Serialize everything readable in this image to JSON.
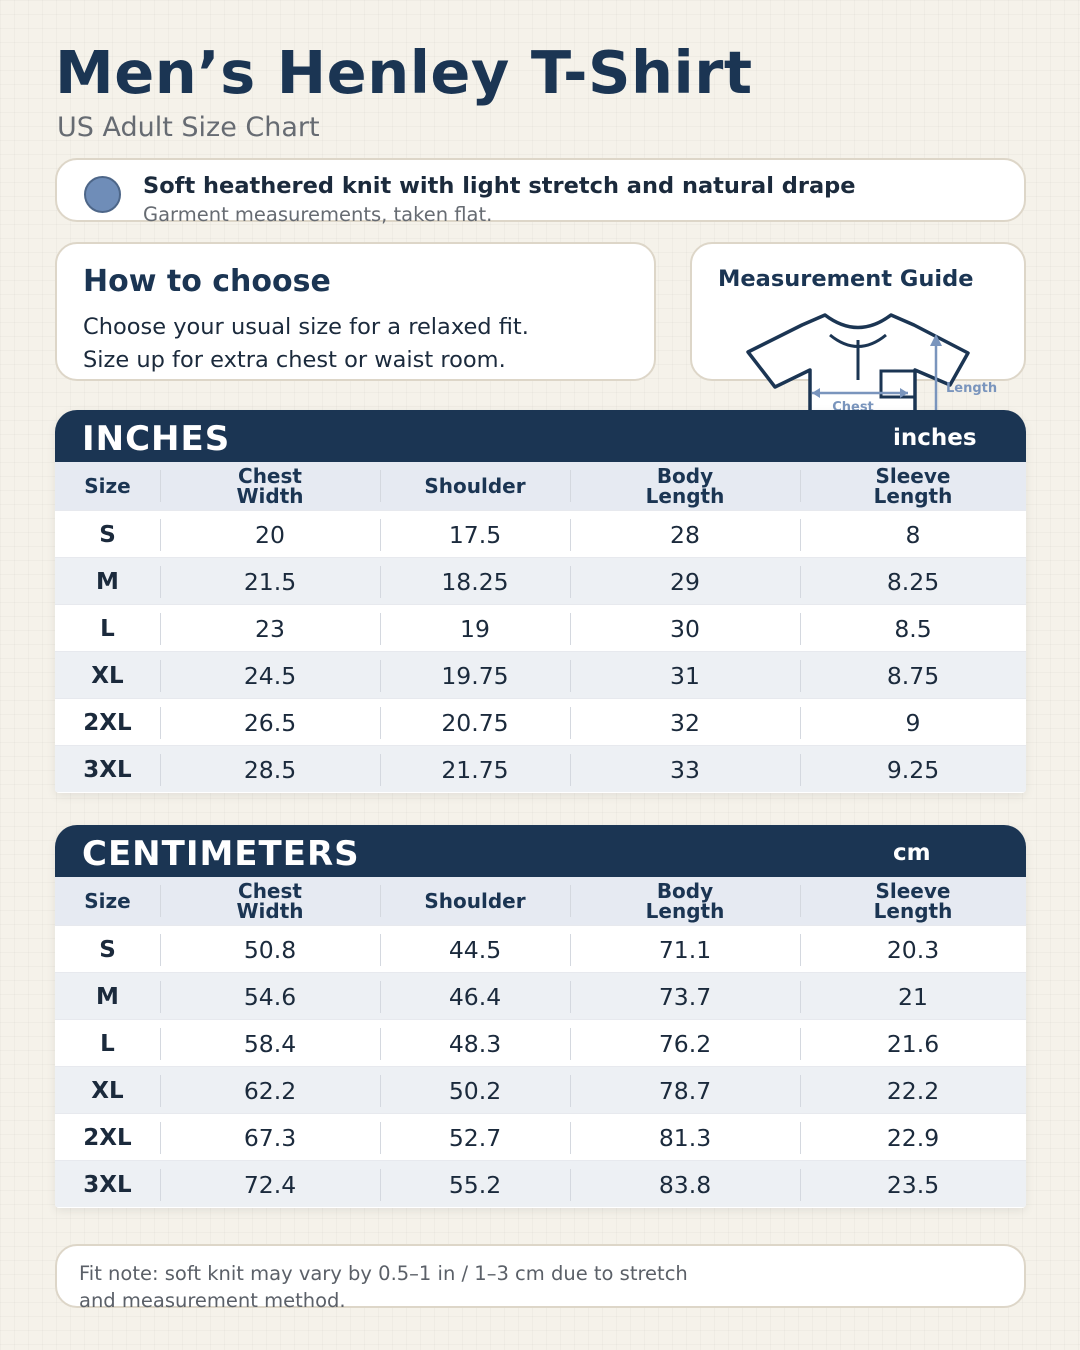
{
  "header": {
    "title": "Men’s Henley T-Shirt",
    "subtitle": "US Adult Size Chart"
  },
  "fabric": {
    "title": "Soft heathered knit with light stretch and natural drape",
    "note": "Garment measurements, taken flat.",
    "swatch_color": "#6f8db8"
  },
  "how_to_choose": {
    "title": "How to choose",
    "lines": [
      "Choose your usual size for a relaxed fit.",
      "Size up for extra chest or waist room."
    ]
  },
  "measurement_guide": {
    "title": "Measurement Guide",
    "chest_label": "Chest",
    "length_label": "Length"
  },
  "columns": [
    "Size",
    "Chest\nWidth",
    "Shoulder",
    "Body\nLength",
    "Sleeve\nLength"
  ],
  "inches_table": {
    "name": "INCHES",
    "unit": "inches",
    "rows": [
      [
        "S",
        "20",
        "17.5",
        "28",
        "8"
      ],
      [
        "M",
        "21.5",
        "18.25",
        "29",
        "8.25"
      ],
      [
        "L",
        "23",
        "19",
        "30",
        "8.5"
      ],
      [
        "XL",
        "24.5",
        "19.75",
        "31",
        "8.75"
      ],
      [
        "2XL",
        "26.5",
        "20.75",
        "32",
        "9"
      ],
      [
        "3XL",
        "28.5",
        "21.75",
        "33",
        "9.25"
      ]
    ]
  },
  "cm_table": {
    "name": "CENTIMETERS",
    "unit": "cm",
    "rows": [
      [
        "S",
        "50.8",
        "44.5",
        "71.1",
        "20.3"
      ],
      [
        "M",
        "54.6",
        "46.4",
        "73.7",
        "21"
      ],
      [
        "L",
        "58.4",
        "48.3",
        "76.2",
        "21.6"
      ],
      [
        "XL",
        "62.2",
        "50.2",
        "78.7",
        "22.2"
      ],
      [
        "2XL",
        "67.3",
        "52.7",
        "81.3",
        "22.9"
      ],
      [
        "3XL",
        "72.4",
        "55.2",
        "83.8",
        "23.5"
      ]
    ]
  },
  "footer": {
    "lines": [
      "Fit note: soft knit may vary by 0.5–1 in / 1–3 cm due to stretch",
      "and measurement method."
    ]
  },
  "colors": {
    "navy": "#1b3553",
    "accent_blue": "#6f8db8",
    "background": "#f5f2ea"
  }
}
